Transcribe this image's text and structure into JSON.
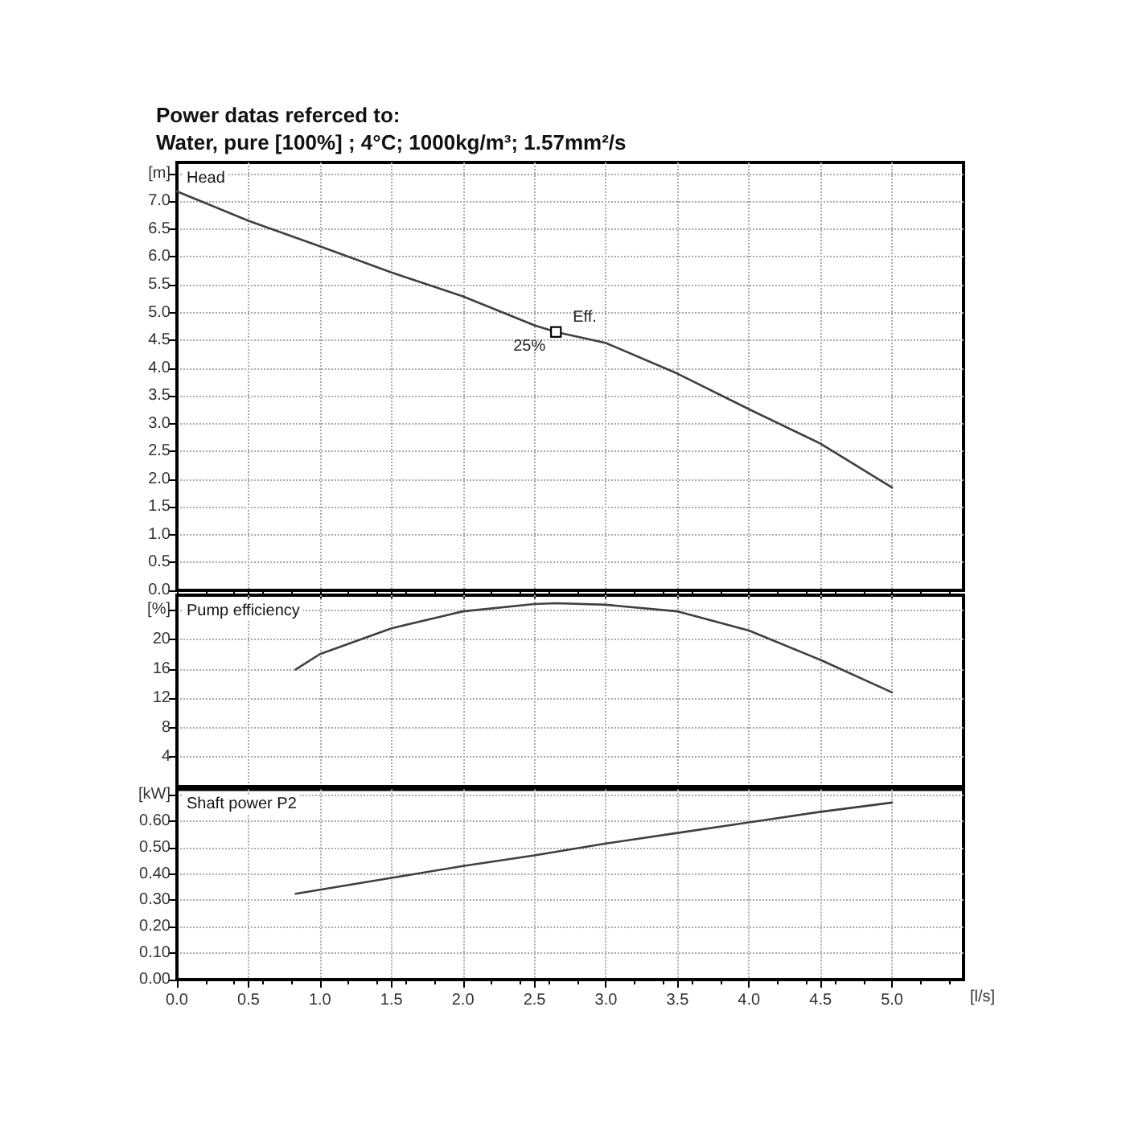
{
  "chart_data": [
    {
      "type": "line",
      "title": "Power datas referced to:",
      "subtitle": "Water, pure [100%] ; 4°C; 1000kg/m³; 1.57mm²/s",
      "ylabel": "Head",
      "color": "#404040",
      "marker": "none",
      "line_style": "solid",
      "grid": true,
      "tick_labels": "y",
      "x": [
        0,
        0.5,
        1,
        1.5,
        2,
        2.5,
        2.65,
        3,
        3.5,
        4,
        4.5,
        5
      ],
      "values": [
        7.18,
        6.65,
        6.19,
        5.72,
        5.29,
        4.77,
        4.65,
        4.45,
        3.9,
        3.26,
        2.64,
        1.85
      ],
      "annotations": [
        {
          "text": "Eff.",
          "x": 2.65,
          "y": 4.65
        },
        {
          "text": "25%",
          "x": 2.65,
          "y": 4.65
        }
      ],
      "xlim": [
        0,
        5.5
      ],
      "xticks": [
        0,
        0.5,
        1,
        1.5,
        2,
        2.5,
        3,
        3.5,
        4,
        4.5,
        5
      ],
      "ylim": [
        0,
        7.7
      ],
      "yticks": [
        {
          "value": 0,
          "label": "0.0"
        },
        {
          "value": 0.5,
          "label": "0.5"
        },
        {
          "value": 1,
          "label": "1.0"
        },
        {
          "value": 1.5,
          "label": "1.5"
        },
        {
          "value": 2,
          "label": "2.0"
        },
        {
          "value": 2.5,
          "label": "2.5"
        },
        {
          "value": 3,
          "label": "3.0"
        },
        {
          "value": 3.5,
          "label": "3.5"
        },
        {
          "value": 4,
          "label": "4.0"
        },
        {
          "value": 4.5,
          "label": "4.5"
        },
        {
          "value": 5,
          "label": "5.0"
        },
        {
          "value": 5.5,
          "label": "5.5"
        },
        {
          "value": 6,
          "label": "6.0"
        },
        {
          "value": 6.5,
          "label": "6.5"
        },
        {
          "value": 7,
          "label": "7.0"
        },
        {
          "value": 7.5,
          "label": "[m]"
        }
      ]
    },
    {
      "type": "line",
      "ylabel": "Pump efficiency",
      "color": "#404040",
      "marker": "none",
      "line_style": "solid",
      "grid": true,
      "tick_labels": "y",
      "x": [
        0.83,
        1,
        1.5,
        2,
        2.5,
        2.65,
        3,
        3.5,
        4,
        4.5,
        5
      ],
      "values": [
        15.9,
        18.0,
        21.5,
        23.8,
        24.8,
        24.9,
        24.7,
        23.8,
        21.2,
        17.2,
        12.8
      ],
      "xlim": [
        0,
        5.5
      ],
      "xticks": [
        0,
        0.5,
        1,
        1.5,
        2,
        2.5,
        3,
        3.5,
        4,
        4.5,
        5
      ],
      "ylim": [
        0,
        26
      ],
      "yticks": [
        4,
        8,
        12,
        16,
        20,
        {
          "value": 24,
          "label": "[%]"
        }
      ]
    },
    {
      "type": "line",
      "ylabel": "Shaft power P2",
      "xlabel": "[l/s]",
      "color": "#404040",
      "marker": "none",
      "line_style": "solid",
      "grid": true,
      "x": [
        0.83,
        1.5,
        2,
        2.5,
        3,
        3.5,
        4,
        4.5,
        5
      ],
      "values": [
        0.325,
        0.385,
        0.43,
        0.47,
        0.515,
        0.555,
        0.595,
        0.635,
        0.67
      ],
      "xlim": [
        0,
        5.5
      ],
      "xticks": [
        {
          "value": 0,
          "label": "0.0"
        },
        {
          "value": 0.5,
          "label": "0.5"
        },
        {
          "value": 1,
          "label": "1.0"
        },
        {
          "value": 1.5,
          "label": "1.5"
        },
        {
          "value": 2,
          "label": "2.0"
        },
        {
          "value": 2.5,
          "label": "2.5"
        },
        {
          "value": 3,
          "label": "3.0"
        },
        {
          "value": 3.5,
          "label": "3.5"
        },
        {
          "value": 4,
          "label": "4.0"
        },
        {
          "value": 4.5,
          "label": "4.5"
        },
        {
          "value": 5,
          "label": "5.0"
        }
      ],
      "ylim": [
        0,
        0.72
      ],
      "yticks": [
        {
          "value": 0,
          "label": "0.00"
        },
        {
          "value": 0.1,
          "label": "0.10"
        },
        {
          "value": 0.2,
          "label": "0.20"
        },
        {
          "value": 0.3,
          "label": "0.30"
        },
        {
          "value": 0.4,
          "label": "0.40"
        },
        {
          "value": 0.5,
          "label": "0.50"
        },
        {
          "value": 0.6,
          "label": "0.60"
        },
        {
          "value": 0.7,
          "label": "[kW]"
        }
      ]
    }
  ]
}
